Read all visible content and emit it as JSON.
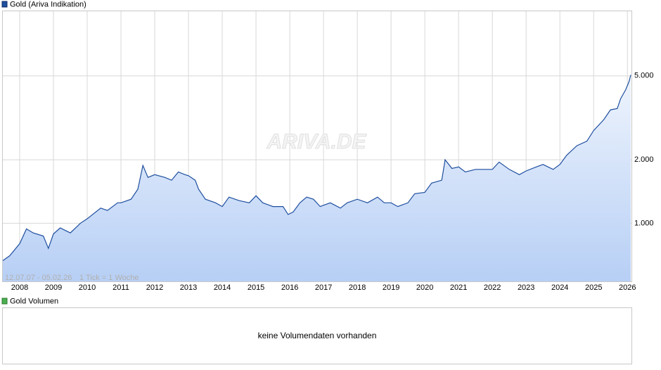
{
  "chart_data": {
    "type": "line",
    "title": "Gold (Ariva Indikation)",
    "date_range": "12.07.07 - 05.02.26",
    "tick_note": "1 Tick = 1 Woche",
    "watermark": "ARIVA.DE",
    "log_scale": true,
    "grid": true,
    "xlim": [
      2007.48,
      2026.12
    ],
    "xticks": [
      2008,
      2009,
      2010,
      2011,
      2012,
      2013,
      2014,
      2015,
      2016,
      2017,
      2018,
      2019,
      2020,
      2021,
      2022,
      2023,
      2024,
      2025,
      2026
    ],
    "ylim": [
      530,
      10200
    ],
    "yticks": [
      {
        "value": 1000,
        "label": "1.000"
      },
      {
        "value": 2000,
        "label": "2.000"
      },
      {
        "value": 5000,
        "label": "5.000"
      }
    ],
    "x": [
      2007.5,
      2007.7,
      2008.0,
      2008.2,
      2008.4,
      2008.7,
      2008.85,
      2009.0,
      2009.2,
      2009.5,
      2009.8,
      2010.0,
      2010.4,
      2010.6,
      2010.9,
      2011.0,
      2011.3,
      2011.5,
      2011.65,
      2011.8,
      2012.0,
      2012.3,
      2012.5,
      2012.7,
      2012.9,
      2013.0,
      2013.2,
      2013.3,
      2013.5,
      2013.8,
      2014.0,
      2014.2,
      2014.5,
      2014.8,
      2015.0,
      2015.2,
      2015.5,
      2015.8,
      2015.95,
      2016.1,
      2016.3,
      2016.5,
      2016.7,
      2016.9,
      2017.2,
      2017.5,
      2017.7,
      2018.0,
      2018.3,
      2018.6,
      2018.8,
      2019.0,
      2019.2,
      2019.5,
      2019.7,
      2020.0,
      2020.2,
      2020.5,
      2020.6,
      2020.8,
      2021.0,
      2021.2,
      2021.5,
      2021.8,
      2022.0,
      2022.2,
      2022.5,
      2022.8,
      2023.0,
      2023.3,
      2023.5,
      2023.8,
      2024.0,
      2024.2,
      2024.5,
      2024.8,
      2025.0,
      2025.3,
      2025.5,
      2025.7,
      2025.8,
      2025.95,
      2026.05,
      2026.1
    ],
    "series": [
      {
        "name": "Gold (Ariva Indikation)",
        "color": "#1f4f9f",
        "values": [
          665,
          700,
          800,
          940,
          900,
          870,
          760,
          890,
          950,
          900,
          1000,
          1050,
          1180,
          1150,
          1250,
          1250,
          1300,
          1450,
          1880,
          1650,
          1700,
          1650,
          1600,
          1750,
          1700,
          1680,
          1600,
          1450,
          1300,
          1250,
          1200,
          1330,
          1280,
          1250,
          1350,
          1250,
          1200,
          1200,
          1100,
          1130,
          1250,
          1330,
          1300,
          1200,
          1250,
          1180,
          1250,
          1300,
          1250,
          1330,
          1250,
          1250,
          1200,
          1250,
          1380,
          1400,
          1550,
          1600,
          2000,
          1820,
          1850,
          1750,
          1800,
          1800,
          1800,
          1950,
          1800,
          1700,
          1770,
          1850,
          1900,
          1800,
          1900,
          2100,
          2330,
          2450,
          2750,
          3100,
          3450,
          3500,
          3900,
          4300,
          4700,
          5050
        ]
      }
    ]
  },
  "volume_panel": {
    "title": "Gold Volumen",
    "message": "keine Volumendaten vorhanden"
  }
}
